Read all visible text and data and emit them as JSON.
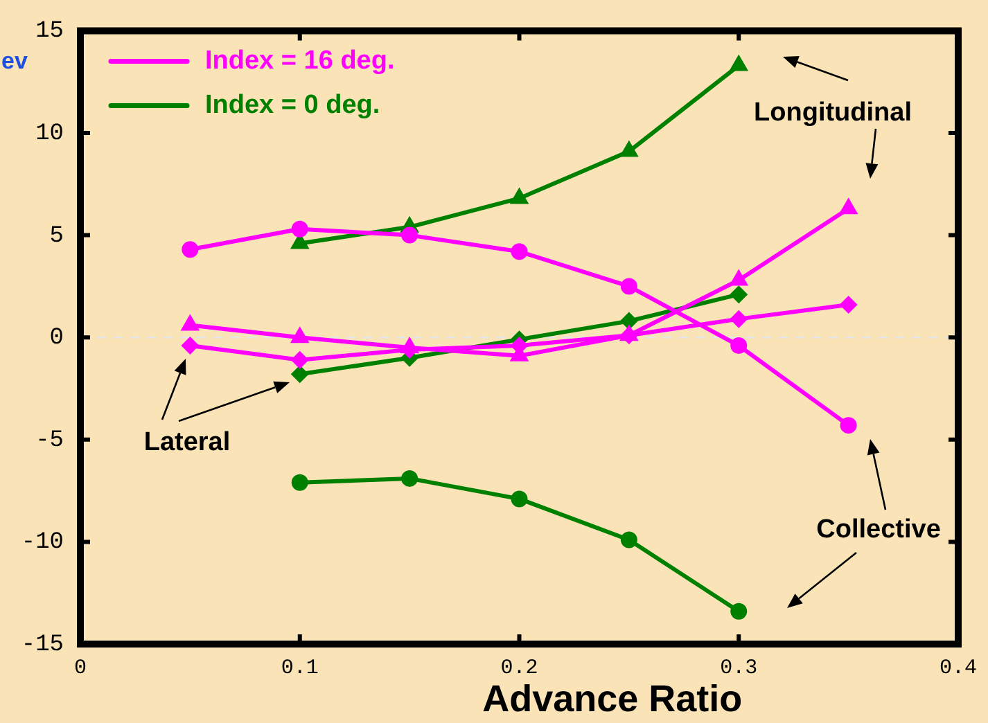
{
  "chart_data": {
    "type": "line",
    "xlabel": "Advance Ratio",
    "ylabel": "ev",
    "x": [
      0.05,
      0.1,
      0.15,
      0.2,
      0.25,
      0.3,
      0.35
    ],
    "series": [
      {
        "name": "Index = 16 deg.",
        "color": "#ff00ff",
        "marker": "circle",
        "values": [
          4.3,
          5.3,
          5.0,
          4.2,
          2.5,
          -0.4,
          -4.3
        ]
      },
      {
        "color": "#ff00ff",
        "marker": "triangle",
        "values": [
          0.6,
          0.0,
          -0.5,
          -0.9,
          0.1,
          2.8,
          6.3
        ]
      },
      {
        "color": "#ff00ff",
        "marker": "diamond",
        "values": [
          -0.4,
          -1.1,
          -0.6,
          -0.4,
          0.1,
          0.9,
          1.6
        ]
      },
      {
        "name": "Index = 0 deg.",
        "color": "#008000",
        "marker": "circle",
        "values": [
          null,
          -7.1,
          -6.9,
          -7.9,
          -9.9,
          -13.4,
          null
        ]
      },
      {
        "color": "#008000",
        "marker": "triangle",
        "values": [
          null,
          4.6,
          5.4,
          6.8,
          9.1,
          13.3,
          null
        ]
      },
      {
        "color": "#008000",
        "marker": "diamond",
        "values": [
          null,
          -1.8,
          -1.0,
          -0.1,
          0.8,
          2.1,
          null
        ]
      }
    ],
    "xlim": [
      0,
      0.4
    ],
    "xticks": [
      0,
      0.1,
      0.2,
      0.3,
      0.4
    ],
    "ylim": [
      -15,
      15
    ],
    "yticks": [
      -15,
      -10,
      -5,
      0,
      5,
      10,
      15
    ],
    "grid": false,
    "legend": "top left",
    "ref_lines": [
      {
        "axis": "y",
        "value": 0,
        "color": "#e6e6e6",
        "line_style": "dashed"
      }
    ],
    "annotations": [
      "Longitudinal",
      "Lateral",
      "Collective"
    ]
  }
}
